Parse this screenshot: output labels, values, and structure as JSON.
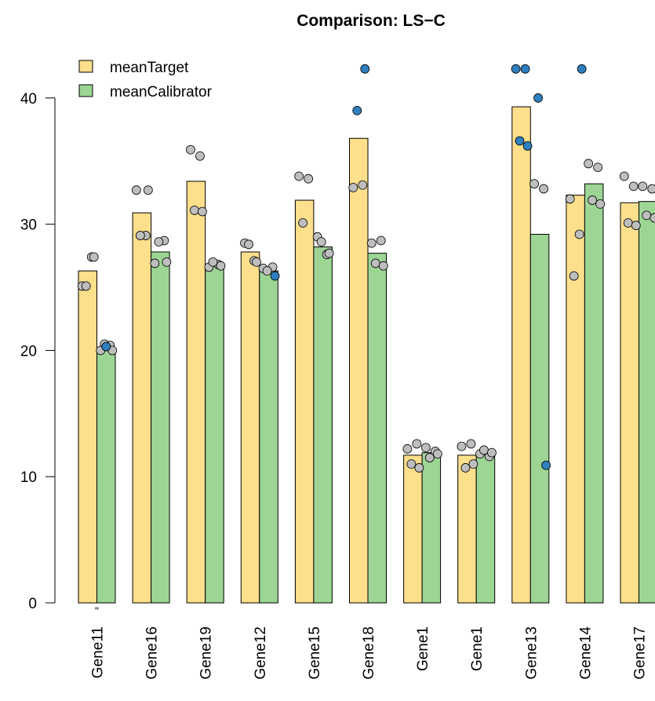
{
  "chart_data": {
    "type": "bar",
    "title": "Comparison: LS−C",
    "xlabel": "",
    "ylabel": "",
    "ylim": [
      0,
      45
    ],
    "yticks": [
      0,
      10,
      20,
      30,
      40
    ],
    "legend_position": "top-left",
    "colors": {
      "meanTarget": "#FDDF8C",
      "meanCalibrator": "#9DD595",
      "point_normal": "#BEBEBE",
      "point_outlier": "#2F7FBE",
      "bar_border": "#000000"
    },
    "categories": [
      "Gene11",
      "Gene16",
      "Gene19",
      "Gene12",
      "Gene15",
      "Gene18",
      "Gene1",
      "Gene1",
      "Gene13",
      "Gene14",
      "Gene17"
    ],
    "x_annotations": [
      {
        "category_index": 0,
        "text": "\""
      }
    ],
    "series": [
      {
        "name": "meanTarget",
        "values": [
          26.3,
          30.9,
          33.4,
          27.8,
          31.9,
          36.8,
          11.7,
          11.7,
          39.3,
          32.3,
          31.7
        ]
      },
      {
        "name": "meanCalibrator",
        "values": [
          20.2,
          27.8,
          26.8,
          26.3,
          28.2,
          27.7,
          11.9,
          11.8,
          29.2,
          33.2,
          31.8
        ]
      }
    ],
    "points": [
      {
        "series": 0,
        "values": [
          25.1,
          27.4,
          25.1,
          27.4
        ],
        "outliers": []
      },
      {
        "series": 1,
        "values": [
          20.0,
          20.4,
          20.5,
          20.0
        ],
        "outliers": [
          20.3
        ]
      },
      {
        "series": 0,
        "values": [
          32.7,
          29.1,
          29.1,
          32.7
        ],
        "outliers": []
      },
      {
        "series": 1,
        "values": [
          26.9,
          28.7,
          28.6,
          27.0
        ],
        "outliers": []
      },
      {
        "series": 0,
        "values": [
          35.9,
          35.4,
          31.1,
          31.0
        ],
        "outliers": []
      },
      {
        "series": 1,
        "values": [
          26.6,
          26.8,
          27.0,
          26.7
        ],
        "outliers": []
      },
      {
        "series": 0,
        "values": [
          28.5,
          27.1,
          28.4,
          27.0
        ],
        "outliers": []
      },
      {
        "series": 1,
        "values": [
          26.5,
          26.6,
          26.3
        ],
        "outliers": [
          25.9
        ]
      },
      {
        "series": 0,
        "values": [
          33.8,
          33.6,
          30.1
        ],
        "outliers": []
      },
      {
        "series": 1,
        "values": [
          29.0,
          27.6,
          28.6,
          27.7
        ],
        "outliers": []
      },
      {
        "series": 0,
        "values": [
          32.9,
          33.1
        ],
        "outliers": [
          39.0,
          42.3
        ]
      },
      {
        "series": 1,
        "values": [
          28.5,
          28.7,
          26.9,
          26.7
        ],
        "outliers": []
      },
      {
        "series": 0,
        "values": [
          12.2,
          12.6,
          11.0,
          10.7
        ],
        "outliers": []
      },
      {
        "series": 1,
        "values": [
          12.3,
          12.0,
          11.5,
          11.8
        ],
        "outliers": []
      },
      {
        "series": 0,
        "values": [
          12.4,
          12.6,
          10.7,
          11.0
        ],
        "outliers": []
      },
      {
        "series": 1,
        "values": [
          11.8,
          11.6,
          12.1,
          11.9
        ],
        "outliers": []
      },
      {
        "series": 0,
        "values": [],
        "outliers": [
          42.3,
          42.3,
          36.6,
          36.2
        ]
      },
      {
        "series": 1,
        "values": [
          33.2,
          32.8
        ],
        "outliers": [
          40.0,
          10.9
        ]
      },
      {
        "series": 0,
        "values": [
          32.0,
          29.2,
          25.9
        ],
        "outliers": [
          42.3
        ]
      },
      {
        "series": 1,
        "values": [
          34.8,
          34.5,
          31.9,
          31.6
        ],
        "outliers": []
      },
      {
        "series": 0,
        "values": [
          33.8,
          33.0,
          30.1,
          29.9
        ],
        "outliers": []
      },
      {
        "series": 1,
        "values": [
          33.0,
          32.8,
          30.7,
          30.5
        ],
        "outliers": []
      }
    ]
  }
}
